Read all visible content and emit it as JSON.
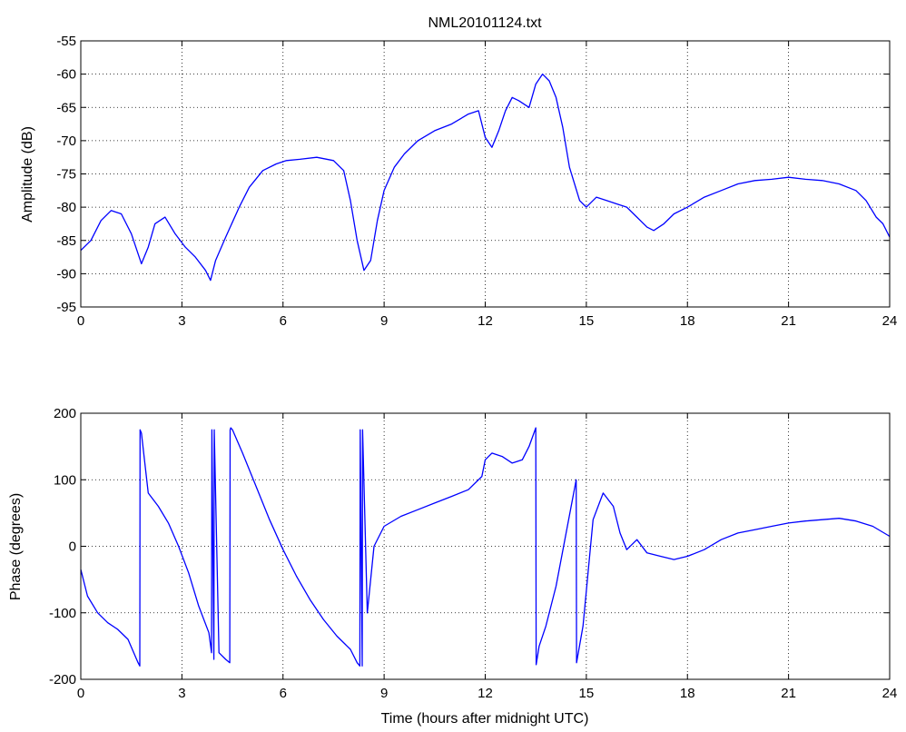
{
  "chart_data": [
    {
      "type": "line",
      "title": "NML20101124.txt",
      "xlabel": "",
      "ylabel": "Amplitude (dB)",
      "xlim": [
        0,
        24
      ],
      "ylim": [
        -95,
        -55
      ],
      "xticks": [
        "0",
        "3",
        "6",
        "9",
        "12",
        "15",
        "18",
        "21",
        "24"
      ],
      "yticks": [
        "-55",
        "-60",
        "-65",
        "-70",
        "-75",
        "-80",
        "-85",
        "-90",
        "-95"
      ],
      "grid": true,
      "line_color": "#0000ff",
      "x": [
        0,
        0.3,
        0.6,
        0.9,
        1.2,
        1.5,
        1.8,
        2.0,
        2.2,
        2.5,
        2.8,
        3.1,
        3.4,
        3.7,
        3.85,
        4.0,
        4.3,
        4.7,
        5.0,
        5.4,
        5.8,
        6.1,
        6.5,
        7.0,
        7.5,
        7.8,
        8.0,
        8.2,
        8.4,
        8.6,
        8.8,
        9.0,
        9.3,
        9.6,
        10.0,
        10.5,
        11.0,
        11.5,
        11.8,
        12.0,
        12.2,
        12.4,
        12.6,
        12.8,
        13.0,
        13.3,
        13.5,
        13.7,
        13.9,
        14.1,
        14.3,
        14.5,
        14.8,
        15.0,
        15.3,
        15.6,
        15.9,
        16.2,
        16.5,
        16.8,
        17.0,
        17.3,
        17.6,
        18.0,
        18.5,
        19.0,
        19.5,
        20.0,
        20.5,
        21.0,
        21.5,
        22.0,
        22.5,
        23.0,
        23.3,
        23.6,
        23.8,
        24.0
      ],
      "values": [
        -86.5,
        -85,
        -82,
        -80.5,
        -81,
        -84,
        -88.5,
        -86,
        -82.5,
        -81.5,
        -84,
        -86,
        -87.5,
        -89.5,
        -91,
        -88,
        -84.5,
        -80,
        -77,
        -74.5,
        -73.5,
        -73,
        -72.8,
        -72.5,
        -73,
        -74.5,
        -79,
        -85,
        -89.5,
        -88,
        -82,
        -77.5,
        -74,
        -72,
        -70,
        -68.5,
        -67.5,
        -66,
        -65.5,
        -69.5,
        -71,
        -68.5,
        -65.5,
        -63.5,
        -64,
        -65,
        -61.5,
        -60,
        -61,
        -63.5,
        -68,
        -74,
        -79,
        -80,
        -78.5,
        -79,
        -79.5,
        -80,
        -81.5,
        -83,
        -83.5,
        -82.5,
        -81,
        -80,
        -78.5,
        -77.5,
        -76.5,
        -76,
        -75.8,
        -75.5,
        -75.8,
        -76,
        -76.5,
        -77.5,
        -79,
        -81.5,
        -82.5,
        -84.5
      ]
    },
    {
      "type": "line",
      "title": "",
      "xlabel": "Time (hours after midnight UTC)",
      "ylabel": "Phase (degrees)",
      "xlim": [
        0,
        24
      ],
      "ylim": [
        -200,
        200
      ],
      "xticks": [
        "0",
        "3",
        "6",
        "9",
        "12",
        "15",
        "18",
        "21",
        "24"
      ],
      "yticks": [
        "200",
        "100",
        "0",
        "-100",
        "-200"
      ],
      "grid": true,
      "line_color": "#0000ff",
      "x": [
        0,
        0.2,
        0.5,
        0.8,
        1.1,
        1.4,
        1.7,
        1.75,
        1.76,
        1.8,
        2.0,
        2.3,
        2.6,
        2.9,
        3.2,
        3.5,
        3.8,
        3.88,
        3.89,
        3.95,
        3.96,
        4.1,
        4.3,
        4.42,
        4.43,
        4.45,
        4.5,
        4.8,
        5.2,
        5.6,
        6.0,
        6.4,
        6.8,
        7.2,
        7.6,
        8.0,
        8.2,
        8.28,
        8.29,
        8.35,
        8.36,
        8.5,
        8.7,
        9.0,
        9.5,
        10.0,
        10.5,
        11.0,
        11.5,
        11.9,
        12.0,
        12.2,
        12.5,
        12.8,
        13.1,
        13.3,
        13.5,
        13.51,
        13.6,
        13.8,
        14.1,
        14.4,
        14.7,
        14.71,
        14.9,
        15.2,
        15.5,
        15.8,
        16.0,
        16.2,
        16.5,
        16.8,
        17.2,
        17.6,
        18.0,
        18.5,
        19.0,
        19.5,
        20.0,
        20.5,
        21.0,
        21.5,
        22.0,
        22.5,
        23.0,
        23.5,
        24.0
      ],
      "values": [
        -35,
        -75,
        -100,
        -115,
        -125,
        -140,
        -175,
        -180,
        175,
        170,
        80,
        60,
        35,
        0,
        -40,
        -90,
        -130,
        -160,
        175,
        -170,
        175,
        -160,
        -170,
        -175,
        175,
        178,
        175,
        140,
        90,
        40,
        -5,
        -45,
        -80,
        -110,
        -135,
        -155,
        -175,
        -180,
        175,
        -180,
        175,
        -100,
        0,
        30,
        45,
        55,
        65,
        75,
        85,
        105,
        130,
        140,
        135,
        125,
        130,
        150,
        178,
        -178,
        -150,
        -120,
        -60,
        20,
        100,
        -175,
        -120,
        40,
        80,
        60,
        20,
        -5,
        10,
        -10,
        -15,
        -20,
        -15,
        -5,
        10,
        20,
        25,
        30,
        35,
        38,
        40,
        42,
        38,
        30,
        15
      ]
    }
  ]
}
